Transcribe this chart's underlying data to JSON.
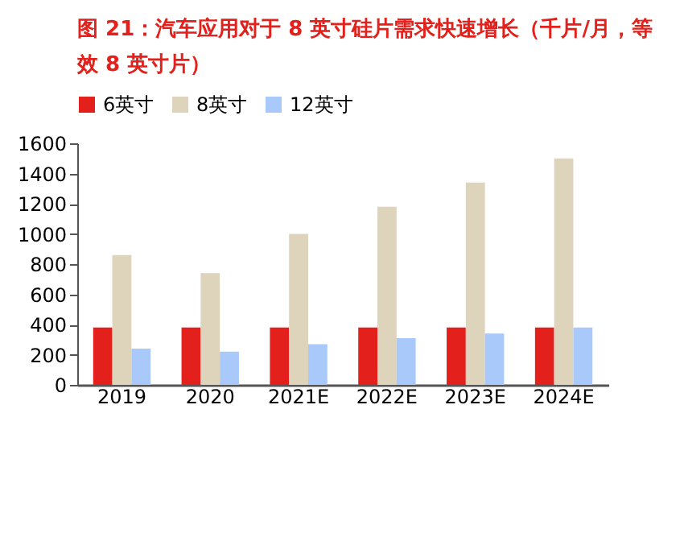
{
  "chart_data": {
    "type": "bar",
    "title": "图 21：汽车应用对于 8 英寸硅片需求快速增长（千片/月，等效 8 英寸片）",
    "categories": [
      "2019",
      "2020",
      "2021E",
      "2022E",
      "2023E",
      "2024E"
    ],
    "series": [
      {
        "name": "6英寸",
        "color": "#e3201b",
        "values": [
          380,
          380,
          380,
          380,
          380,
          380
        ]
      },
      {
        "name": "8英寸",
        "color": "#ded3bb",
        "values": [
          860,
          740,
          1000,
          1180,
          1340,
          1500
        ]
      },
      {
        "name": "12英寸",
        "color": "#a9c9fb",
        "values": [
          240,
          220,
          270,
          310,
          340,
          380
        ]
      }
    ],
    "ylim": [
      0,
      1600
    ],
    "yticks": [
      0,
      200,
      400,
      600,
      800,
      1000,
      1200,
      1400,
      1600
    ],
    "grid": false,
    "legend": "top"
  }
}
